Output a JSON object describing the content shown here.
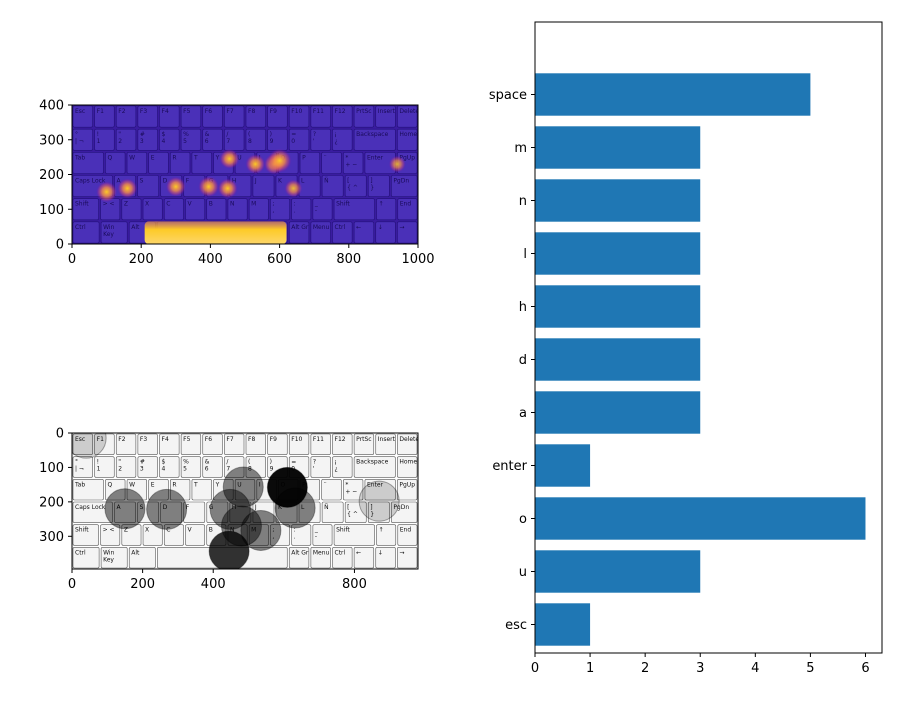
{
  "chart_data": [
    {
      "type": "heatmap",
      "xlim": [
        0,
        1000
      ],
      "ylim": [
        0,
        400
      ],
      "xticks": [
        "0",
        "200",
        "400",
        "600",
        "800",
        "1000"
      ],
      "yticks": [
        "0",
        "100",
        "200",
        "300",
        "400"
      ],
      "colormap": "plasma",
      "hotspots": [
        {
          "x": 100,
          "y": 150,
          "level": 0.55
        },
        {
          "x": 160,
          "y": 160,
          "level": 0.5
        },
        {
          "x": 300,
          "y": 165,
          "level": 0.5
        },
        {
          "x": 395,
          "y": 165,
          "level": 0.55
        },
        {
          "x": 450,
          "y": 160,
          "level": 0.5
        },
        {
          "x": 455,
          "y": 245,
          "level": 0.5
        },
        {
          "x": 530,
          "y": 230,
          "level": 0.5
        },
        {
          "x": 585,
          "y": 230,
          "level": 0.55
        },
        {
          "x": 600,
          "y": 240,
          "level": 0.7
        },
        {
          "x": 640,
          "y": 160,
          "level": 0.4
        },
        {
          "x": 940,
          "y": 230,
          "level": 0.35
        },
        {
          "x": 420,
          "y": 30,
          "level": 1.0
        }
      ]
    },
    {
      "type": "scatter",
      "xlim": [
        0,
        980
      ],
      "ylim": [
        395,
        0
      ],
      "xticks": [
        "0",
        "200",
        "400",
        "800"
      ],
      "yticks": [
        "0",
        "100",
        "200",
        "300"
      ],
      "points": [
        {
          "key": "esc",
          "x": 40,
          "y": 15,
          "count": 1
        },
        {
          "key": "u",
          "x": 485,
          "y": 157,
          "count": 3
        },
        {
          "key": "o",
          "x": 610,
          "y": 158,
          "count": 6
        },
        {
          "key": "enter",
          "x": 870,
          "y": 198,
          "count": 1
        },
        {
          "key": "a",
          "x": 150,
          "y": 220,
          "count": 3
        },
        {
          "key": "d",
          "x": 268,
          "y": 222,
          "count": 3
        },
        {
          "key": "h",
          "x": 448,
          "y": 222,
          "count": 3
        },
        {
          "key": "l",
          "x": 632,
          "y": 218,
          "count": 3
        },
        {
          "key": "n",
          "x": 480,
          "y": 270,
          "count": 3
        },
        {
          "key": "m",
          "x": 535,
          "y": 283,
          "count": 3
        },
        {
          "key": "space",
          "x": 445,
          "y": 343,
          "count": 5
        }
      ]
    },
    {
      "type": "bar",
      "orientation": "horizontal",
      "categories": [
        "esc",
        "u",
        "o",
        "enter",
        "a",
        "d",
        "h",
        "l",
        "n",
        "m",
        "space"
      ],
      "values": [
        1,
        3,
        6,
        1,
        3,
        3,
        3,
        3,
        3,
        3,
        5
      ],
      "xlim": [
        0,
        6.3
      ],
      "xticks": [
        0,
        1,
        2,
        3,
        4,
        5,
        6
      ],
      "bar_color": "#1f77b4"
    }
  ],
  "keyboard": {
    "rows": [
      [
        "Esc",
        "F1",
        "F2",
        "F3",
        "F4",
        "F5",
        "F6",
        "F7",
        "F8",
        "F9",
        "F10",
        "F11",
        "F12",
        "PrtSc",
        "Insert",
        "Delete"
      ],
      [
        "°\n| ¬",
        "!\n1",
        "\"\n2",
        "#\n3",
        "$\n4",
        "%\n5",
        "&\n6",
        "/\n7",
        "(\n8",
        ")\n9",
        "=\n0",
        "?\n'",
        "¡\n¿",
        "Backspace",
        "Home"
      ],
      [
        "Tab",
        "Q",
        "W",
        "E",
        "R",
        "T",
        "Y",
        "U",
        "I",
        "O",
        "P",
        "¨",
        "*\n+ ~",
        "Enter",
        "PgUp"
      ],
      [
        "Caps Lock",
        "A",
        "S",
        "D",
        "F",
        "G",
        "H",
        "J",
        "K",
        "L",
        "Ñ",
        "[\n{ ^",
        "]\n}",
        "PgDn"
      ],
      [
        "Shift",
        "> <",
        "Z",
        "X",
        "C",
        "V",
        "B",
        "N",
        "M",
        ";\n,",
        ":\n.",
        "_\n-",
        "Shift",
        "↑",
        "End"
      ],
      [
        "Ctrl",
        "Win\nKey",
        "Alt",
        "",
        "Alt Gr",
        "Menu",
        "Ctrl",
        "←",
        "↓",
        "→"
      ]
    ]
  }
}
